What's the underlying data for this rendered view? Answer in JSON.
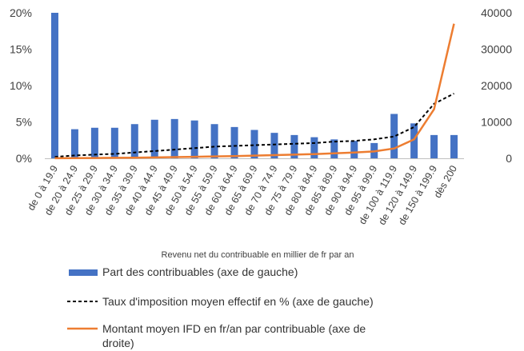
{
  "chart_data": {
    "type": "bar+line",
    "categories": [
      "de 0 à 19.9",
      "de 20 à 24.9",
      "de 25 à 29.9",
      "de 30 à 34.9",
      "de 35 à 39.9",
      "de 40 à 44.9",
      "de 45 à 49.9",
      "de 50 à 54.9",
      "de 55 à 59.9",
      "de 60 à 64.9",
      "de 65 à 69.9",
      "de 70 à 74.9",
      "de 75 à 79.9",
      "de 80 à 84.9",
      "de 85 à 89.9",
      "de 90 à 94.9",
      "de 95 à 99.9",
      "de 100 à 119.9",
      "de 120 à 149.9",
      "de 150 à 199.9",
      "dès 200"
    ],
    "xlabel": "Revenu net du contribuable en millier de fr par an",
    "y_left": {
      "ticks": [
        "0%",
        "5%",
        "10%",
        "15%",
        "20%"
      ],
      "min": 0,
      "max": 20
    },
    "y_right": {
      "ticks": [
        "0",
        "10000",
        "20000",
        "30000",
        "40000"
      ],
      "min": 0,
      "max": 40000
    },
    "series": [
      {
        "name": "Part des contribuables (axe de gauche)",
        "type": "bar",
        "axis": "left",
        "color": "#4472C4",
        "values": [
          20.0,
          4.0,
          4.2,
          4.2,
          4.7,
          5.3,
          5.4,
          5.2,
          4.7,
          4.3,
          3.9,
          3.5,
          3.2,
          2.9,
          2.6,
          2.4,
          2.1,
          6.1,
          4.8,
          3.2,
          3.2
        ]
      },
      {
        "name": "Taux d'imposition moyen effectif en % (axe de gauche)",
        "type": "line",
        "dashed": true,
        "axis": "left",
        "color": "#000000",
        "values": [
          0.2,
          0.4,
          0.5,
          0.6,
          0.8,
          1.0,
          1.2,
          1.4,
          1.6,
          1.7,
          1.8,
          1.9,
          2.0,
          2.1,
          2.3,
          2.4,
          2.6,
          3.0,
          4.3,
          7.5,
          8.9
        ]
      },
      {
        "name": "Montant moyen IFD en fr/an par contribuable (axe de droite)",
        "type": "line",
        "axis": "right",
        "color": "#ED7D31",
        "values": [
          20,
          60,
          90,
          130,
          180,
          250,
          330,
          420,
          520,
          620,
          740,
          870,
          1010,
          1170,
          1370,
          1600,
          1900,
          2700,
          5200,
          13500,
          37000
        ]
      }
    ],
    "legend_position": "bottom",
    "grid": false
  },
  "legend": [
    {
      "text": "Part des contribuables (axe de gauche)"
    },
    {
      "text": "Taux d'imposition moyen effectif en % (axe de gauche)"
    },
    {
      "text": "Montant moyen IFD en fr/an par contribuable (axe de droite)"
    }
  ]
}
